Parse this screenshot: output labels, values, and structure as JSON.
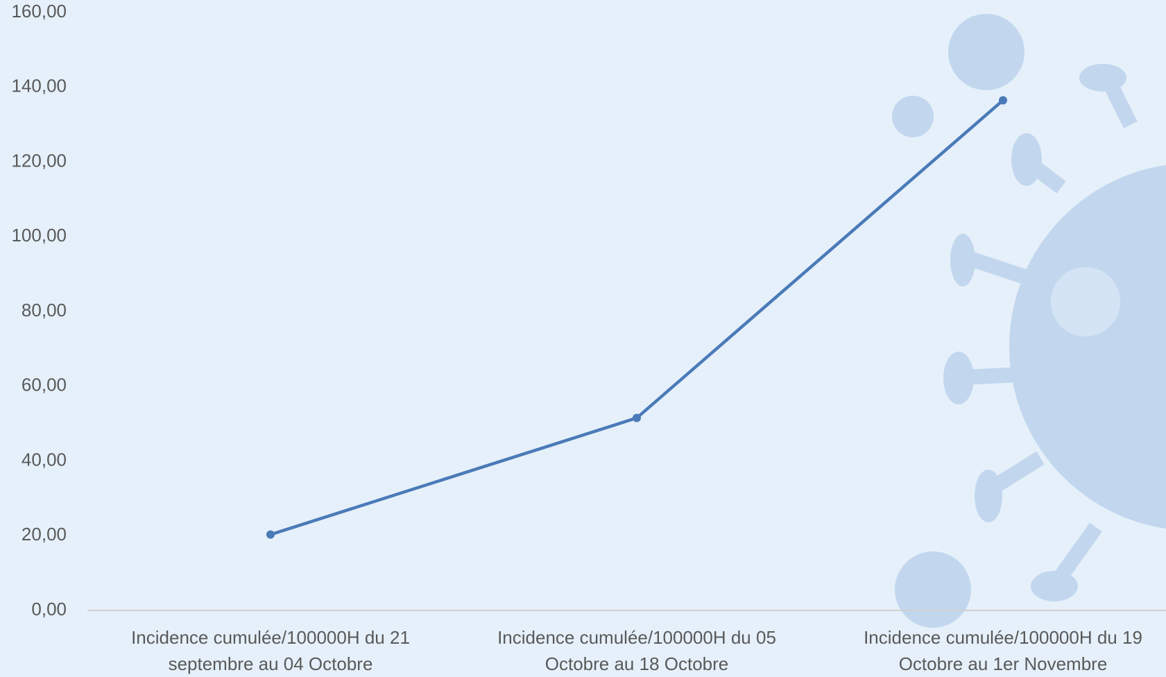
{
  "chart_data": {
    "type": "line",
    "categories": [
      "Incidence cumulée/100000H du 21 septembre au 04 Octobre",
      "Incidence cumulée/100000H du 05 Octobre au 18 Octobre",
      "Incidence cumulée/100000H du 19 Octobre au 1er Novembre"
    ],
    "values": [
      20.3,
      51.5,
      136.5
    ],
    "color": "#4a7ab8",
    "ylim": [
      0,
      160
    ],
    "yticks": [
      {
        "value": 0,
        "label": "0,00"
      },
      {
        "value": 20,
        "label": "20,00"
      },
      {
        "value": 40,
        "label": "40,00"
      },
      {
        "value": 60,
        "label": "60,00"
      },
      {
        "value": 80,
        "label": "80,00"
      },
      {
        "value": 100,
        "label": "100,00"
      },
      {
        "value": 120,
        "label": "120,00"
      },
      {
        "value": 140,
        "label": "140,00"
      },
      {
        "value": 160,
        "label": "160,00"
      }
    ],
    "grid": false
  }
}
